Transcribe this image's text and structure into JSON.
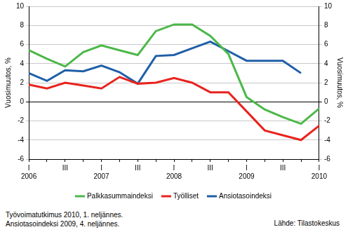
{
  "chart_data": {
    "type": "line",
    "y_label": "Vuosimuutos, %",
    "categories": [
      "I",
      null,
      "III",
      null,
      "I",
      null,
      "III",
      null,
      "I",
      null,
      "III",
      null,
      "I",
      null,
      "III",
      null,
      "I"
    ],
    "year_labels": [
      "2006",
      "2007",
      "2008",
      "2009",
      "2010"
    ],
    "series": [
      {
        "name": "Palkkasummaindeksi",
        "color": "#4cb848",
        "values": [
          5.4,
          4.5,
          3.7,
          5.2,
          5.9,
          5.4,
          4.9,
          7.4,
          8.1,
          8.1,
          6.9,
          5.0,
          0.5,
          -0.8,
          -1.6,
          -2.3,
          -0.7
        ]
      },
      {
        "name": "Työlliset",
        "color": "#e8231e",
        "values": [
          1.8,
          1.4,
          2.0,
          1.7,
          1.4,
          2.6,
          1.9,
          2.0,
          2.5,
          2.0,
          1.0,
          1.0,
          -1.0,
          -3.0,
          -3.5,
          -4.0,
          -2.5
        ]
      },
      {
        "name": "Ansiotasoindeksi",
        "color": "#1f5fa8",
        "values": [
          3.0,
          2.2,
          3.3,
          3.2,
          3.8,
          3.1,
          1.9,
          4.8,
          4.9,
          5.6,
          6.3,
          5.3,
          4.3,
          4.3,
          4.3,
          3.0,
          null
        ]
      }
    ],
    "ylim": [
      -6,
      10
    ],
    "yticks": [
      -6,
      -4,
      -2,
      0,
      2,
      4,
      6,
      8,
      10
    ],
    "grid": true,
    "legend": "bottom",
    "notes": [
      "Työvoimatutkimus 2010, 1. neljännes.",
      "Ansiotasoindeksi 2009, 4. neljännes."
    ],
    "source": "Lähde: Tilastokeskus"
  }
}
